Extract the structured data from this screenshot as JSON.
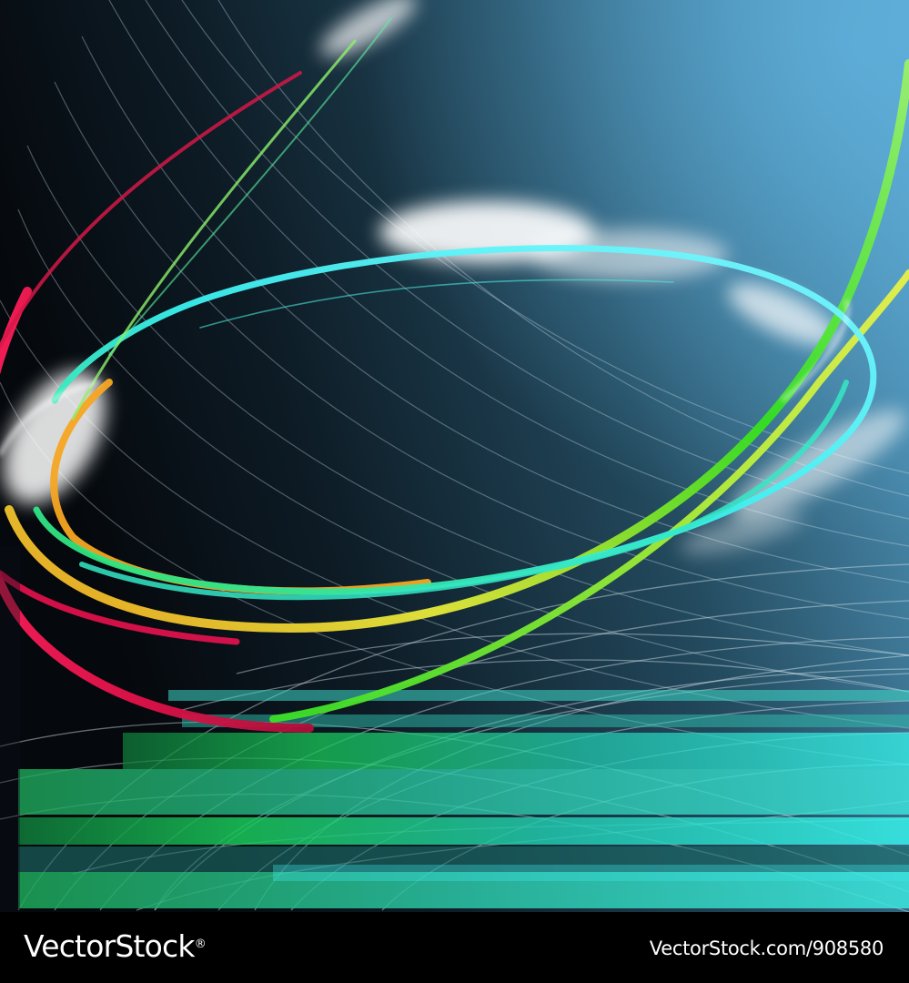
{
  "footer": {
    "brand": "VectorStock",
    "reg_mark": "®",
    "image_id": "VectorStock.com/908580"
  },
  "palette": {
    "background_dark": "#05080c",
    "background_mid": "#234a5e",
    "background_light": "#5aa6cf",
    "footer": "#000000",
    "ribbon_red": "#e0124a",
    "ribbon_orange": "#f5a623",
    "ribbon_yellow": "#e6ea3a",
    "ribbon_green": "#34e01e",
    "ribbon_cyan": "#3af0f0",
    "glow_white": "#ffffff",
    "band_green": "#19c85a",
    "band_cyan": "#36f2ea"
  }
}
